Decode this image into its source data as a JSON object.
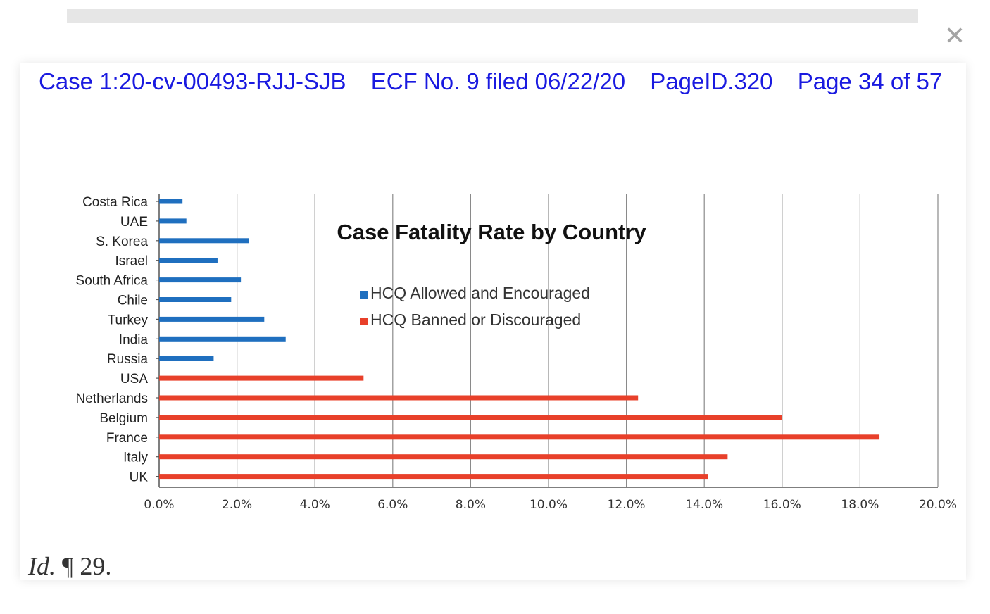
{
  "header": {
    "case": "Case 1:20-cv-00493-RJJ-SJB",
    "ecf": "ECF No. 9 filed 06/22/20",
    "pageid": "PageID.320",
    "page": "Page 34 of 57"
  },
  "close_icon": "close-icon",
  "caption": {
    "italic": "Id.",
    "rest": " ¶ 29."
  },
  "colors": {
    "blue": "#1f6fbf",
    "red": "#e8402a",
    "header": "#1a1ae0"
  },
  "chart_data": {
    "type": "bar",
    "orientation": "horizontal",
    "title": "Case Fatality Rate by Country",
    "xlabel": "",
    "ylabel": "",
    "xlim": [
      0,
      20
    ],
    "x_ticks": [
      "0.0%",
      "2.0%",
      "4.0%",
      "6.0%",
      "8.0%",
      "10.0%",
      "12.0%",
      "14.0%",
      "16.0%",
      "18.0%",
      "20.0%"
    ],
    "grid": true,
    "legend": {
      "placement": "top-center",
      "entries": [
        "HCQ Allowed and Encouraged",
        "HCQ Banned or Discouraged"
      ]
    },
    "categories": [
      "Costa Rica",
      "UAE",
      "S. Korea",
      "Israel",
      "South Africa",
      "Chile",
      "Turkey",
      "India",
      "Russia",
      "USA",
      "Netherlands",
      "Belgium",
      "France",
      "Italy",
      "UK"
    ],
    "series": [
      {
        "name": "HCQ Allowed and Encouraged",
        "color": "#1f6fbf",
        "values": [
          0.6,
          0.7,
          2.3,
          1.5,
          2.1,
          1.85,
          2.7,
          3.25,
          1.4,
          null,
          null,
          null,
          null,
          null,
          null
        ]
      },
      {
        "name": "HCQ Banned or Discouraged",
        "color": "#e8402a",
        "values": [
          null,
          null,
          null,
          null,
          null,
          null,
          null,
          null,
          null,
          5.25,
          12.3,
          16.0,
          18.5,
          14.6,
          14.1
        ]
      }
    ]
  }
}
